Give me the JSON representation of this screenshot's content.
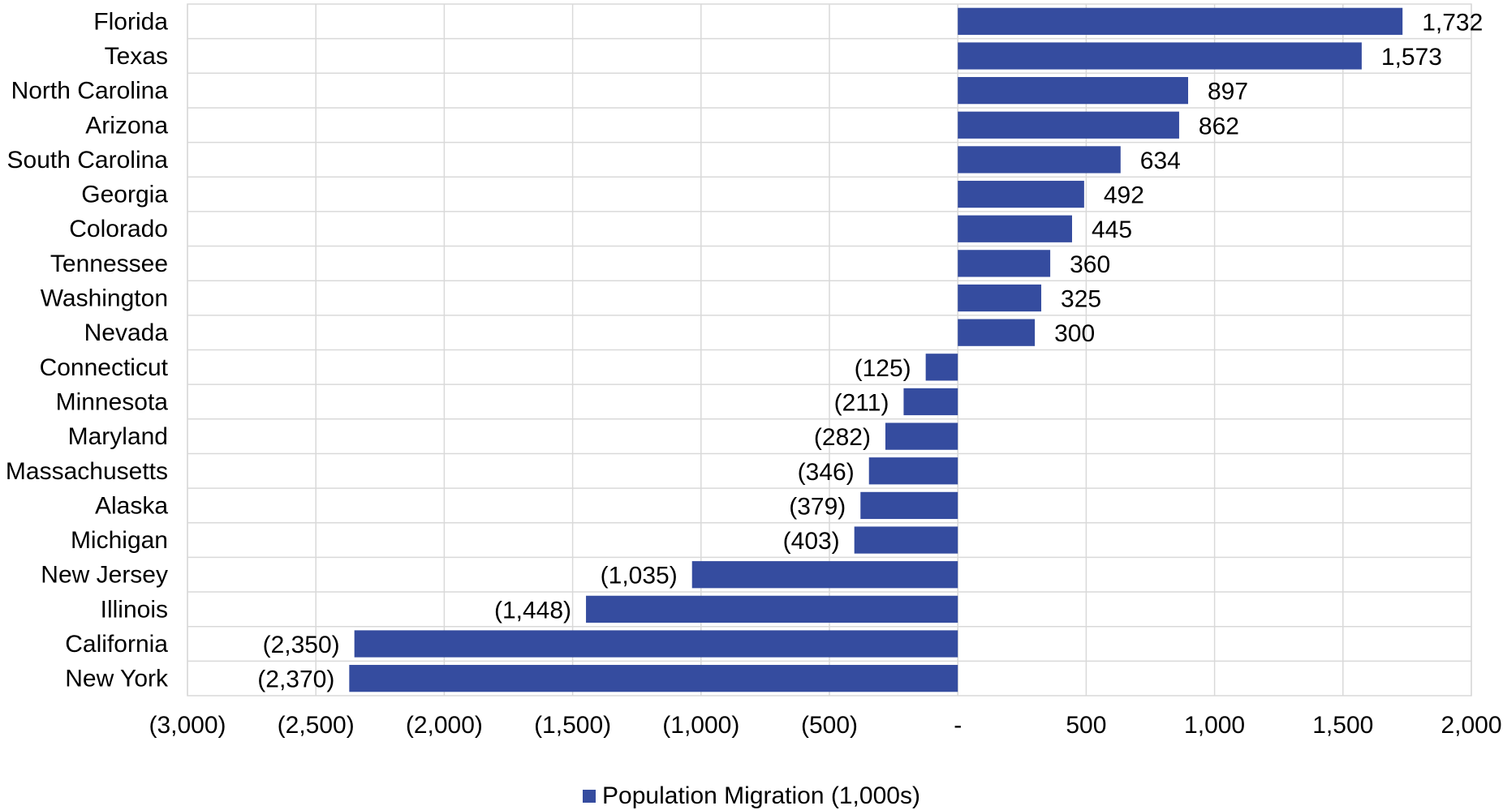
{
  "chart_data": {
    "type": "bar",
    "orientation": "horizontal",
    "categories": [
      "Florida",
      "Texas",
      "North Carolina",
      "Arizona",
      "South Carolina",
      "Georgia",
      "Colorado",
      "Tennessee",
      "Washington",
      "Nevada",
      "Connecticut",
      "Minnesota",
      "Maryland",
      "Massachusetts",
      "Alaska",
      "Michigan",
      "New Jersey",
      "Illinois",
      "California",
      "New York"
    ],
    "values": [
      1732,
      1573,
      897,
      862,
      634,
      492,
      445,
      360,
      325,
      300,
      -125,
      -211,
      -282,
      -346,
      -379,
      -403,
      -1035,
      -1448,
      -2350,
      -2370
    ],
    "data_labels": [
      "1,732",
      "1,573",
      "897",
      "862",
      "634",
      "492",
      "445",
      "360",
      "325",
      "300",
      "(125)",
      "(211)",
      "(282)",
      "(346)",
      "(379)",
      "(403)",
      "(1,035)",
      "(1,448)",
      "(2,350)",
      "(2,370)"
    ],
    "xlim": [
      -3000,
      2000
    ],
    "x_ticks": [
      -3000,
      -2500,
      -2000,
      -1500,
      -1000,
      -500,
      0,
      500,
      1000,
      1500,
      2000
    ],
    "x_tick_labels": [
      "(3,000)",
      "(2,500)",
      "(2,000)",
      "(1,500)",
      "(1,000)",
      "(500)",
      "-",
      "500",
      "1,000",
      "1,500",
      "2,000"
    ],
    "grid": true,
    "legend": {
      "position": "bottom",
      "entries": [
        "Population Migration (1,000s)"
      ]
    },
    "colors": {
      "bar": "#354c9f",
      "grid": "#d9d9d9"
    }
  }
}
